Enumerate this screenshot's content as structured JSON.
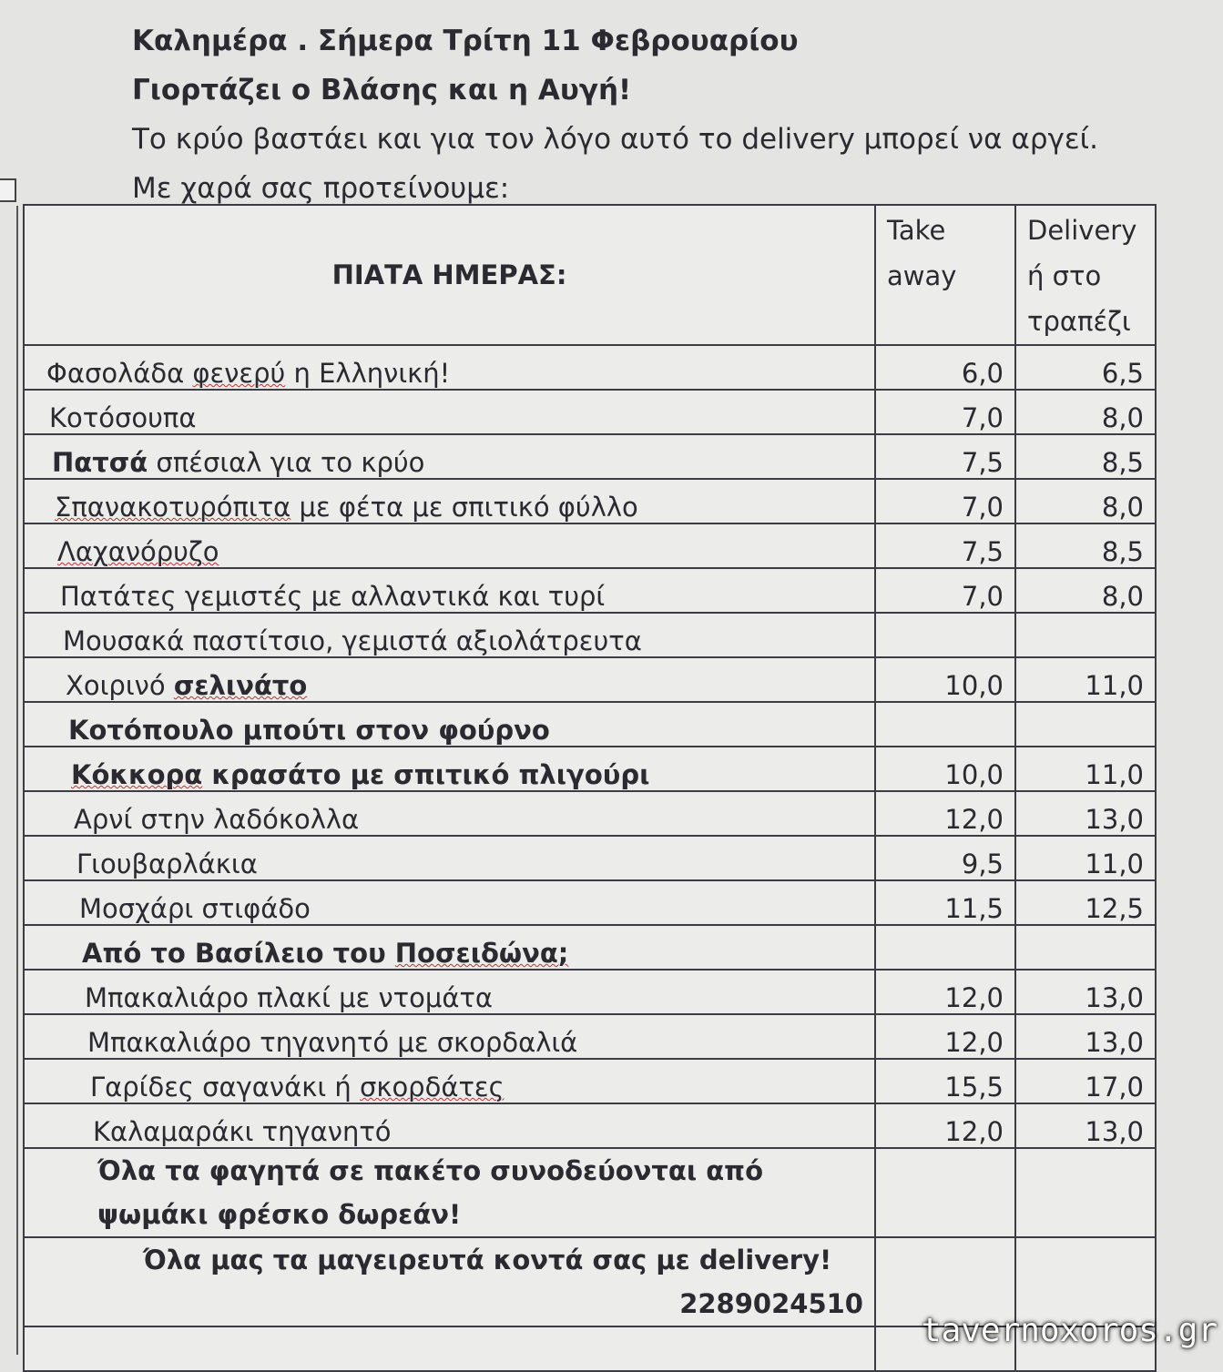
{
  "intro": {
    "line1": "Καλημέρα . Σήμερα Τρίτη 11 Φεβρουαρίου",
    "line2": "Γιορτάζει ο Βλάσης και η Αυγή!",
    "line3": "Το κρύο βαστάει και για τον λόγο αυτό το delivery μπορεί να αργεί.",
    "line4": "Με χαρά σας προτείνουμε:"
  },
  "table": {
    "title": "ΠΙΑΤΑ ΗΜΕΡΑΣ:",
    "col_takeaway": "Take away",
    "col_delivery": "Delivery ή στο τραπέζι",
    "rows": [
      {
        "parts": [
          {
            "text": "Φασολάδα ",
            "bold": false
          },
          {
            "text": "φενερύ",
            "bold": false,
            "spell": true
          },
          {
            "text": " η Ελληνική!",
            "bold": false
          }
        ],
        "takeaway": "6,0",
        "delivery": "6,5"
      },
      {
        "parts": [
          {
            "text": "Κοτόσουπα",
            "bold": false
          }
        ],
        "takeaway": "7,0",
        "delivery": "8,0"
      },
      {
        "parts": [
          {
            "text": "Πατσά",
            "bold": true
          },
          {
            "text": " σπέσιαλ για το κρύο",
            "bold": false
          }
        ],
        "takeaway": "7,5",
        "delivery": "8,5"
      },
      {
        "parts": [
          {
            "text": "Σπανακοτυρόπιτα",
            "bold": false,
            "spell": true
          },
          {
            "text": " με φέτα με σπιτικό φύλλο",
            "bold": false
          }
        ],
        "takeaway": "7,0",
        "delivery": "8,0"
      },
      {
        "parts": [
          {
            "text": "Λαχανόρυζο",
            "bold": false,
            "spell": true
          }
        ],
        "takeaway": "7,5",
        "delivery": "8,5"
      },
      {
        "parts": [
          {
            "text": "Πατάτες γεμιστές με αλλαντικά και τυρί",
            "bold": false
          }
        ],
        "takeaway": "7,0",
        "delivery": "8,0"
      },
      {
        "parts": [
          {
            "text": "Μουσακά παστίτσιο, γεμιστά αξιολάτρευτα",
            "bold": false
          }
        ],
        "takeaway": "",
        "delivery": ""
      },
      {
        "parts": [
          {
            "text": "Χοιρινό ",
            "bold": false
          },
          {
            "text": "σελινάτο",
            "bold": true,
            "spell": true
          }
        ],
        "takeaway": "10,0",
        "delivery": "11,0"
      },
      {
        "parts": [
          {
            "text": "Κοτόπουλο μπούτι στον φούρνο",
            "bold": true
          }
        ],
        "takeaway": "",
        "delivery": ""
      },
      {
        "parts": [
          {
            "text": "Κόκκορα",
            "bold": true,
            "spell": true
          },
          {
            "text": " κρασάτο με σπιτικό πλιγούρι",
            "bold": true
          }
        ],
        "takeaway": "10,0",
        "delivery": "11,0"
      },
      {
        "parts": [
          {
            "text": "Αρνί στην λαδόκολλα",
            "bold": false
          }
        ],
        "takeaway": "12,0",
        "delivery": "13,0"
      },
      {
        "parts": [
          {
            "text": "Γιουβαρλάκια",
            "bold": false
          }
        ],
        "takeaway": "9,5",
        "delivery": "11,0"
      },
      {
        "parts": [
          {
            "text": "Μοσχάρι στιφάδο",
            "bold": false
          }
        ],
        "takeaway": "11,5",
        "delivery": "12,5"
      },
      {
        "parts": [
          {
            "text": "Από το Βασίλειο του ",
            "bold": true
          },
          {
            "text": "Ποσειδώνα;",
            "bold": true,
            "spell": true
          }
        ],
        "takeaway": "",
        "delivery": ""
      },
      {
        "parts": [
          {
            "text": "Μπακαλιάρο πλακί με ντομάτα",
            "bold": false
          }
        ],
        "takeaway": "12,0",
        "delivery": "13,0"
      },
      {
        "parts": [
          {
            "text": "Μπακαλιάρο τηγανητό με σκορδαλιά",
            "bold": false
          }
        ],
        "takeaway": "12,0",
        "delivery": "13,0"
      },
      {
        "parts": [
          {
            "text": "Γαρίδες σαγανάκι ή ",
            "bold": false
          },
          {
            "text": "σκορδάτες",
            "bold": false,
            "spell": true
          }
        ],
        "takeaway": "15,5",
        "delivery": "17,0"
      },
      {
        "parts": [
          {
            "text": "Καλαμαράκι τηγανητό",
            "bold": false
          }
        ],
        "takeaway": "12,0",
        "delivery": "13,0"
      }
    ],
    "note_bread": "Όλα τα φαγητά σε πακέτο συνοδεύονται από ψωμάκι φρέσκο δωρεάν!",
    "note_delivery": "Όλα μας τα μαγειρευτά κοντά σας με delivery!",
    "phone": "2289024510"
  },
  "watermark": "tavernoxoros.gr"
}
